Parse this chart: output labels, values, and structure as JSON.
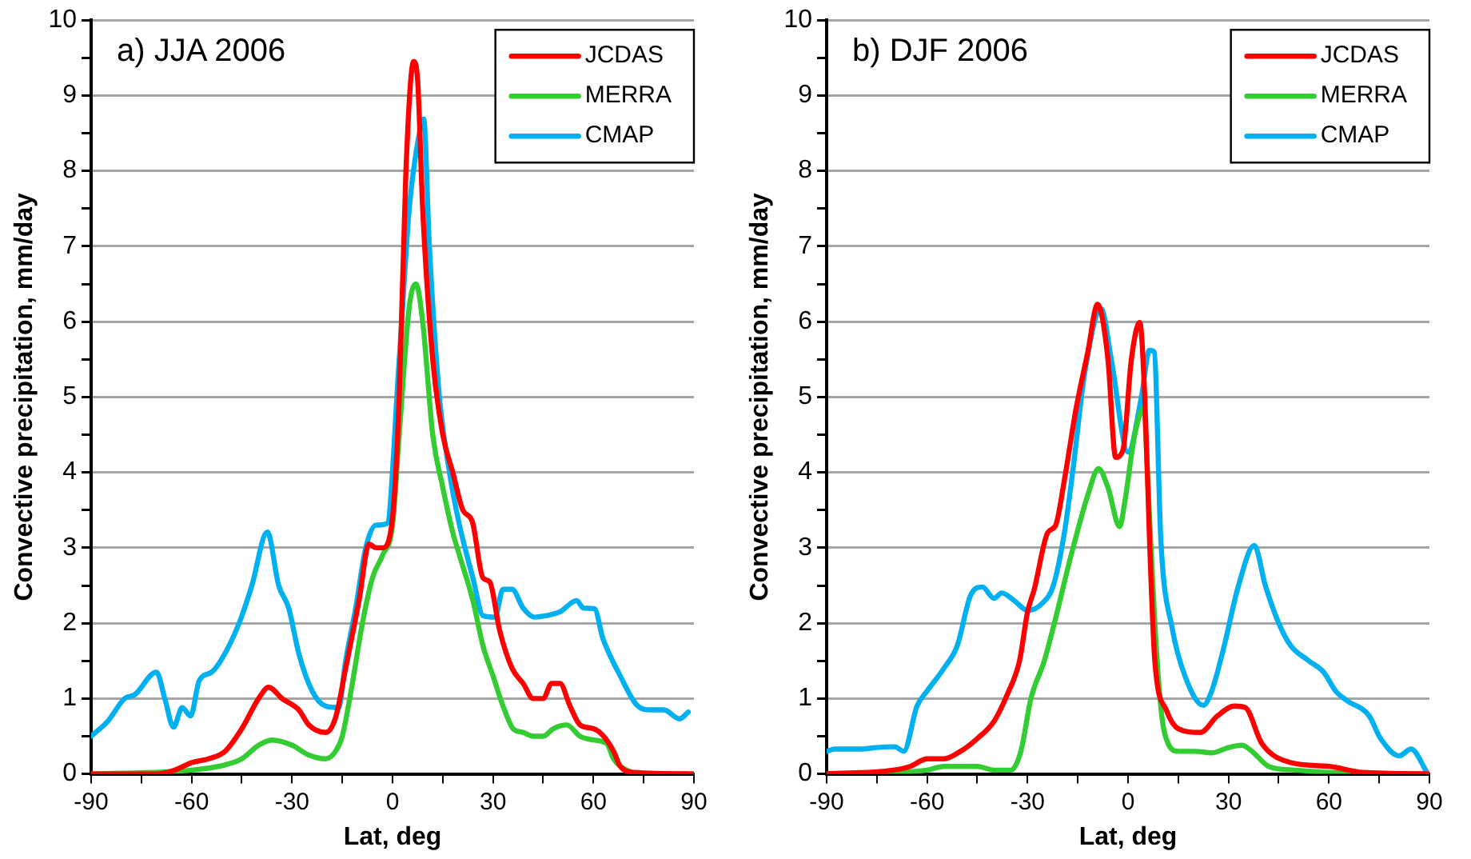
{
  "chart_data": [
    {
      "type": "line",
      "title": "a) JJA 2006",
      "xlabel": "Lat, deg",
      "ylabel": "Convective precipitation, mm/day",
      "xlim": [
        -90,
        90
      ],
      "xticks": [
        -90,
        {
          "value": -75,
          "label": null
        },
        -60,
        {
          "value": -45,
          "label": null
        },
        -30,
        {
          "value": -15,
          "label": null
        },
        0,
        {
          "value": 15,
          "label": null
        },
        30,
        {
          "value": 45,
          "label": null
        },
        60,
        {
          "value": 75,
          "label": null
        },
        90
      ],
      "ylim": [
        0,
        10
      ],
      "yticks": [
        0,
        {
          "value": 0.5,
          "label": null
        },
        1,
        {
          "value": 1.5,
          "label": null
        },
        2,
        {
          "value": 2.5,
          "label": null
        },
        3,
        {
          "value": 3.5,
          "label": null
        },
        4,
        {
          "value": 4.5,
          "label": null
        },
        5,
        {
          "value": 5.5,
          "label": null
        },
        6,
        {
          "value": 6.5,
          "label": null
        },
        7,
        {
          "value": 7.5,
          "label": null
        },
        8,
        {
          "value": 8.5,
          "label": null
        },
        9,
        {
          "value": 9.5,
          "label": null
        },
        10
      ],
      "grid": "y",
      "legend": "top right",
      "marker": "none",
      "line_style": "solid",
      "series": [
        {
          "name": "JCDAS",
          "color": "#ff0000",
          "x": [
            -90,
            -70,
            -65,
            -60,
            -55,
            -50,
            -45,
            -40,
            -37,
            -33,
            -28,
            -25,
            -20,
            -17,
            -14,
            -10,
            -7,
            -5,
            -3,
            0,
            2,
            4,
            6.3,
            7.5,
            9,
            12,
            15,
            18,
            21,
            23.8,
            27,
            29,
            32,
            35.7,
            39,
            42,
            45,
            47.5,
            50,
            53,
            56,
            60,
            63,
            66,
            68,
            72,
            90
          ],
          "values": [
            0,
            0,
            0.05,
            0.15,
            0.2,
            0.3,
            0.6,
            1.0,
            1.15,
            1.0,
            0.85,
            0.65,
            0.55,
            0.75,
            1.4,
            2.3,
            3.05,
            3.0,
            3.0,
            3.4,
            5.0,
            8.0,
            9.45,
            9.2,
            7.5,
            5.5,
            4.5,
            4.0,
            3.5,
            3.35,
            2.6,
            2.55,
            1.9,
            1.4,
            1.2,
            1.0,
            1.0,
            1.2,
            1.2,
            0.9,
            0.65,
            0.6,
            0.5,
            0.3,
            0.1,
            0.02,
            0
          ]
        },
        {
          "name": "MERRA",
          "color": "#33cc33",
          "x": [
            -90,
            -60,
            -50,
            -45,
            -40,
            -36,
            -30,
            -25,
            -20,
            -17,
            -15,
            -12,
            -9,
            -6,
            -3,
            0,
            2,
            5,
            7,
            9,
            12,
            15,
            18,
            20,
            24,
            27,
            30,
            33,
            36,
            39,
            42,
            45,
            48,
            52,
            56,
            60,
            64,
            66,
            70,
            75,
            90
          ],
          "values": [
            0,
            0.05,
            0.12,
            0.2,
            0.38,
            0.45,
            0.38,
            0.25,
            0.2,
            0.3,
            0.5,
            1.2,
            2.0,
            2.6,
            2.9,
            3.3,
            4.5,
            6.2,
            6.5,
            6.0,
            4.5,
            3.8,
            3.2,
            2.9,
            2.3,
            1.7,
            1.3,
            0.9,
            0.6,
            0.55,
            0.5,
            0.5,
            0.6,
            0.65,
            0.5,
            0.45,
            0.4,
            0.2,
            0.05,
            0,
            0
          ]
        },
        {
          "name": "CMAP",
          "color": "#00b0f0",
          "x": [
            -90,
            -85,
            -80,
            -77,
            -70.5,
            -68,
            -65.4,
            -62.8,
            -60.3,
            -57.7,
            -54,
            -50.9,
            -45.8,
            -42,
            -37.4,
            -34,
            -31,
            -28,
            -24,
            -20,
            -16.1,
            -14,
            -11,
            -8,
            -5,
            -1.7,
            2,
            5,
            8,
            9.3,
            11,
            14,
            17,
            20,
            24,
            27,
            30.6,
            33,
            35.7,
            39,
            42.4,
            46,
            50,
            55,
            57,
            60.3,
            62.8,
            68,
            73,
            77,
            81,
            85.7,
            88.3
          ],
          "values": [
            0.5,
            0.7,
            1.0,
            1.05,
            1.35,
            1.0,
            0.62,
            0.88,
            0.77,
            1.24,
            1.35,
            1.53,
            2.0,
            2.5,
            3.21,
            2.5,
            2.2,
            1.6,
            1.1,
            0.9,
            0.88,
            1.5,
            2.2,
            3.0,
            3.3,
            3.32,
            5.5,
            7.5,
            8.5,
            8.69,
            7.0,
            5.0,
            4.0,
            3.3,
            2.6,
            2.1,
            2.08,
            2.45,
            2.45,
            2.2,
            2.08,
            2.1,
            2.15,
            2.3,
            2.2,
            2.19,
            1.8,
            1.3,
            0.91,
            0.85,
            0.85,
            0.73,
            0.82
          ]
        }
      ]
    },
    {
      "type": "line",
      "title": "b) DJF 2006",
      "xlabel": "Lat, deg",
      "ylabel": "Convective precipitation, mm/day",
      "xlim": [
        -90,
        90
      ],
      "xticks": [
        -90,
        {
          "value": -75,
          "label": null
        },
        -60,
        {
          "value": -45,
          "label": null
        },
        -30,
        {
          "value": -15,
          "label": null
        },
        0,
        {
          "value": 15,
          "label": null
        },
        30,
        {
          "value": 45,
          "label": null
        },
        60,
        {
          "value": 75,
          "label": null
        },
        90
      ],
      "ylim": [
        0,
        10
      ],
      "yticks": [
        0,
        {
          "value": 0.5,
          "label": null
        },
        1,
        {
          "value": 1.5,
          "label": null
        },
        2,
        {
          "value": 2.5,
          "label": null
        },
        3,
        {
          "value": 3.5,
          "label": null
        },
        4,
        {
          "value": 4.5,
          "label": null
        },
        5,
        {
          "value": 5.5,
          "label": null
        },
        6,
        {
          "value": 6.5,
          "label": null
        },
        7,
        {
          "value": 7.5,
          "label": null
        },
        8,
        {
          "value": 8.5,
          "label": null
        },
        9,
        {
          "value": 9.5,
          "label": null
        },
        10
      ],
      "grid": "y",
      "legend": "top right",
      "marker": "none",
      "line_style": "solid",
      "series": [
        {
          "name": "JCDAS",
          "color": "#ff0000",
          "x": [
            -90,
            -70,
            -65,
            -60,
            -55,
            -50,
            -45,
            -40,
            -36,
            -32.4,
            -30,
            -28,
            -24,
            -21.6,
            -19,
            -15.5,
            -12,
            -9.1,
            -6,
            -3.7,
            -1.5,
            1,
            3.5,
            5,
            6.5,
            8,
            11.5,
            15,
            21.6,
            26.7,
            31.8,
            35,
            40,
            48.6,
            60,
            70,
            90
          ],
          "values": [
            0,
            0.05,
            0.1,
            0.2,
            0.2,
            0.3,
            0.47,
            0.7,
            1.06,
            1.5,
            2.15,
            2.45,
            3.2,
            3.3,
            3.9,
            4.85,
            5.6,
            6.23,
            5.5,
            4.2,
            4.3,
            5.5,
            5.99,
            5.0,
            3.0,
            1.5,
            0.84,
            0.6,
            0.55,
            0.77,
            0.9,
            0.88,
            0.4,
            0.15,
            0.1,
            0.02,
            0
          ]
        },
        {
          "name": "MERRA",
          "color": "#33cc33",
          "x": [
            -90,
            -70,
            -60,
            -55,
            -45,
            -40,
            -35,
            -32,
            -29,
            -25,
            -22,
            -17,
            -12,
            -8.8,
            -6,
            -2.5,
            -1,
            2,
            4.7,
            6,
            8,
            10,
            12,
            15,
            20,
            25,
            30,
            34,
            37,
            42,
            50,
            60,
            90
          ],
          "values": [
            0,
            0.02,
            0.05,
            0.1,
            0.1,
            0.05,
            0.05,
            0.3,
            1.0,
            1.5,
            2.0,
            2.9,
            3.7,
            4.05,
            3.8,
            3.28,
            3.6,
            4.5,
            4.85,
            3.8,
            2.0,
            0.8,
            0.4,
            0.3,
            0.3,
            0.28,
            0.35,
            0.38,
            0.3,
            0.1,
            0.05,
            0.02,
            0
          ]
        },
        {
          "name": "CMAP",
          "color": "#00b0f0",
          "x": [
            -90,
            -87.5,
            -80,
            -75,
            -69.7,
            -67,
            -63,
            -60,
            -55,
            -51,
            -47,
            -43.5,
            -40,
            -37.7,
            -34,
            -30,
            -25.7,
            -22.3,
            -19,
            -16.4,
            -13,
            -8,
            -5,
            0,
            4,
            6.4,
            7.8,
            9.8,
            13.2,
            17,
            22.5,
            25,
            28.4,
            33,
            37.7,
            41,
            45,
            48.6,
            54,
            58.4,
            62,
            65.1,
            72,
            75.4,
            81,
            84.5,
            89.5
          ],
          "values": [
            0.3,
            0.33,
            0.33,
            0.35,
            0.36,
            0.3,
            0.9,
            1.1,
            1.4,
            1.7,
            2.37,
            2.48,
            2.33,
            2.4,
            2.3,
            2.17,
            2.26,
            2.5,
            3.2,
            4.05,
            5.3,
            6.17,
            5.5,
            4.27,
            5.0,
            5.62,
            5.6,
            3.1,
            1.93,
            1.3,
            0.91,
            1.1,
            1.64,
            2.5,
            3.03,
            2.5,
            2.0,
            1.7,
            1.5,
            1.35,
            1.1,
            0.98,
            0.77,
            0.47,
            0.24,
            0.33,
            0
          ]
        }
      ]
    }
  ]
}
